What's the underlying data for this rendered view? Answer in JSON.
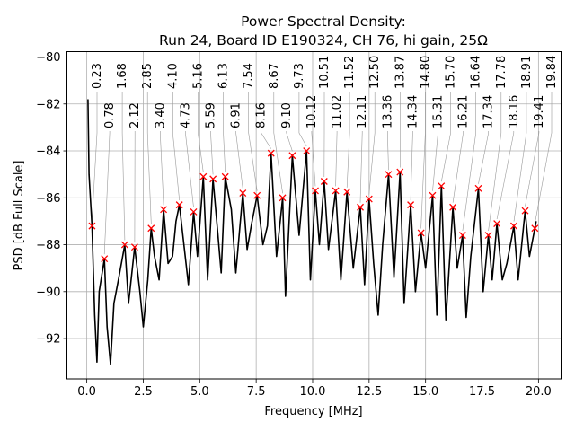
{
  "chart_data": {
    "type": "line",
    "title_lines": [
      "Power Spectral Density:",
      "Run 24, Board ID E190324, CH 76, hi gain, 25Ω"
    ],
    "xlabel": "Frequency [MHz]",
    "ylabel": "PSD [dB Full Scale]",
    "xlim": [
      -0.88,
      21.0
    ],
    "ylim": [
      -93.72,
      -79.77
    ],
    "xticks": [
      0.0,
      2.5,
      5.0,
      7.5,
      10.0,
      12.5,
      15.0,
      17.5,
      20.0
    ],
    "xtick_labels": [
      "0.0",
      "2.5",
      "5.0",
      "7.5",
      "10.0",
      "12.5",
      "15.0",
      "17.5",
      "20.0"
    ],
    "yticks": [
      -80,
      -82,
      -84,
      -86,
      -88,
      -90,
      -92
    ],
    "ytick_labels": [
      "−80",
      "−82",
      "−84",
      "−86",
      "−88",
      "−90",
      "−92"
    ],
    "grid": true,
    "line_color": "#000000",
    "marker_color": "#ff0000",
    "series": {
      "x": [
        0.05,
        0.1,
        0.23,
        0.35,
        0.45,
        0.55,
        0.78,
        0.9,
        1.05,
        1.2,
        1.4,
        1.68,
        1.85,
        2.12,
        2.35,
        2.5,
        2.7,
        2.85,
        3.0,
        3.2,
        3.4,
        3.6,
        3.8,
        3.95,
        4.1,
        4.3,
        4.5,
        4.73,
        4.9,
        5.16,
        5.35,
        5.59,
        5.8,
        5.95,
        6.13,
        6.4,
        6.6,
        6.91,
        7.1,
        7.3,
        7.54,
        7.8,
        8.0,
        8.16,
        8.4,
        8.67,
        8.8,
        9.1,
        9.4,
        9.73,
        9.9,
        10.12,
        10.3,
        10.51,
        10.7,
        11.02,
        11.25,
        11.52,
        11.8,
        12.11,
        12.3,
        12.5,
        12.7,
        12.9,
        13.1,
        13.36,
        13.6,
        13.87,
        14.05,
        14.34,
        14.55,
        14.8,
        15.0,
        15.31,
        15.5,
        15.7,
        15.9,
        16.21,
        16.4,
        16.64,
        16.8,
        17.0,
        17.34,
        17.55,
        17.78,
        17.95,
        18.16,
        18.4,
        18.6,
        18.91,
        19.1,
        19.41,
        19.6,
        19.84,
        19.9
      ],
      "y": [
        -81.8,
        -85,
        -87.2,
        -91,
        -93,
        -90,
        -88.6,
        -91.5,
        -93.1,
        -90.5,
        -89.5,
        -88.0,
        -90.5,
        -88.1,
        -90,
        -91.5,
        -89.5,
        -87.3,
        -88.5,
        -89.5,
        -86.5,
        -88.8,
        -88.5,
        -87.0,
        -86.3,
        -88,
        -89.7,
        -86.6,
        -88.5,
        -85.1,
        -89.5,
        -85.2,
        -87.5,
        -89.2,
        -85.1,
        -86.5,
        -89.2,
        -85.8,
        -88.2,
        -87.1,
        -85.9,
        -88,
        -87.2,
        -84.1,
        -88.5,
        -86,
        -90.2,
        -84.2,
        -87.6,
        -84.0,
        -89.5,
        -85.7,
        -88,
        -85.3,
        -88.2,
        -85.7,
        -89.5,
        -85.75,
        -89,
        -86.4,
        -89.7,
        -86.05,
        -88.8,
        -91,
        -88,
        -85.0,
        -89.4,
        -84.9,
        -90.5,
        -86.3,
        -90,
        -87.5,
        -89,
        -85.9,
        -91,
        -85.5,
        -91.2,
        -86.4,
        -89,
        -87.6,
        -91.1,
        -88.5,
        -85.6,
        -90,
        -87.6,
        -89.5,
        -87.1,
        -89.5,
        -88.8,
        -87.2,
        -89.5,
        -86.55,
        -88.5,
        -87.3,
        -87
      ]
    },
    "peaks": [
      {
        "x": 0.23,
        "y": -87.2,
        "label": "0.23"
      },
      {
        "x": 0.78,
        "y": -88.6,
        "label": "0.78"
      },
      {
        "x": 1.68,
        "y": -88.0,
        "label": "1.68"
      },
      {
        "x": 2.12,
        "y": -88.1,
        "label": "2.12"
      },
      {
        "x": 2.85,
        "y": -87.3,
        "label": "2.85"
      },
      {
        "x": 3.4,
        "y": -86.5,
        "label": "3.40"
      },
      {
        "x": 4.1,
        "y": -86.3,
        "label": "4.10"
      },
      {
        "x": 4.73,
        "y": -86.6,
        "label": "4.73"
      },
      {
        "x": 5.16,
        "y": -85.1,
        "label": "5.16"
      },
      {
        "x": 5.59,
        "y": -85.2,
        "label": "5.59"
      },
      {
        "x": 6.13,
        "y": -85.1,
        "label": "6.13"
      },
      {
        "x": 6.91,
        "y": -85.8,
        "label": "6.91"
      },
      {
        "x": 7.54,
        "y": -85.9,
        "label": "7.54"
      },
      {
        "x": 8.16,
        "y": -84.1,
        "label": "8.16"
      },
      {
        "x": 8.67,
        "y": -86.0,
        "label": "8.67"
      },
      {
        "x": 9.1,
        "y": -84.2,
        "label": "9.10"
      },
      {
        "x": 9.73,
        "y": -84.0,
        "label": "9.73"
      },
      {
        "x": 10.12,
        "y": -85.7,
        "label": "10.12"
      },
      {
        "x": 10.51,
        "y": -85.3,
        "label": "10.51"
      },
      {
        "x": 11.02,
        "y": -85.7,
        "label": "11.02"
      },
      {
        "x": 11.52,
        "y": -85.75,
        "label": "11.52"
      },
      {
        "x": 12.11,
        "y": -86.4,
        "label": "12.11"
      },
      {
        "x": 12.5,
        "y": -86.05,
        "label": "12.50"
      },
      {
        "x": 13.36,
        "y": -85.0,
        "label": "13.36"
      },
      {
        "x": 13.87,
        "y": -84.9,
        "label": "13.87"
      },
      {
        "x": 14.34,
        "y": -86.3,
        "label": "14.34"
      },
      {
        "x": 14.8,
        "y": -87.5,
        "label": "14.80"
      },
      {
        "x": 15.31,
        "y": -85.9,
        "label": "15.31"
      },
      {
        "x": 15.7,
        "y": -85.5,
        "label": "15.70"
      },
      {
        "x": 16.21,
        "y": -86.4,
        "label": "16.21"
      },
      {
        "x": 16.64,
        "y": -87.6,
        "label": "16.64"
      },
      {
        "x": 17.34,
        "y": -85.6,
        "label": "17.34"
      },
      {
        "x": 17.78,
        "y": -87.6,
        "label": "17.78"
      },
      {
        "x": 18.16,
        "y": -87.1,
        "label": "18.16"
      },
      {
        "x": 18.91,
        "y": -87.2,
        "label": "18.91"
      },
      {
        "x": 19.41,
        "y": -86.55,
        "label": "19.41"
      },
      {
        "x": 19.84,
        "y": -87.3,
        "label": "19.84"
      }
    ]
  }
}
